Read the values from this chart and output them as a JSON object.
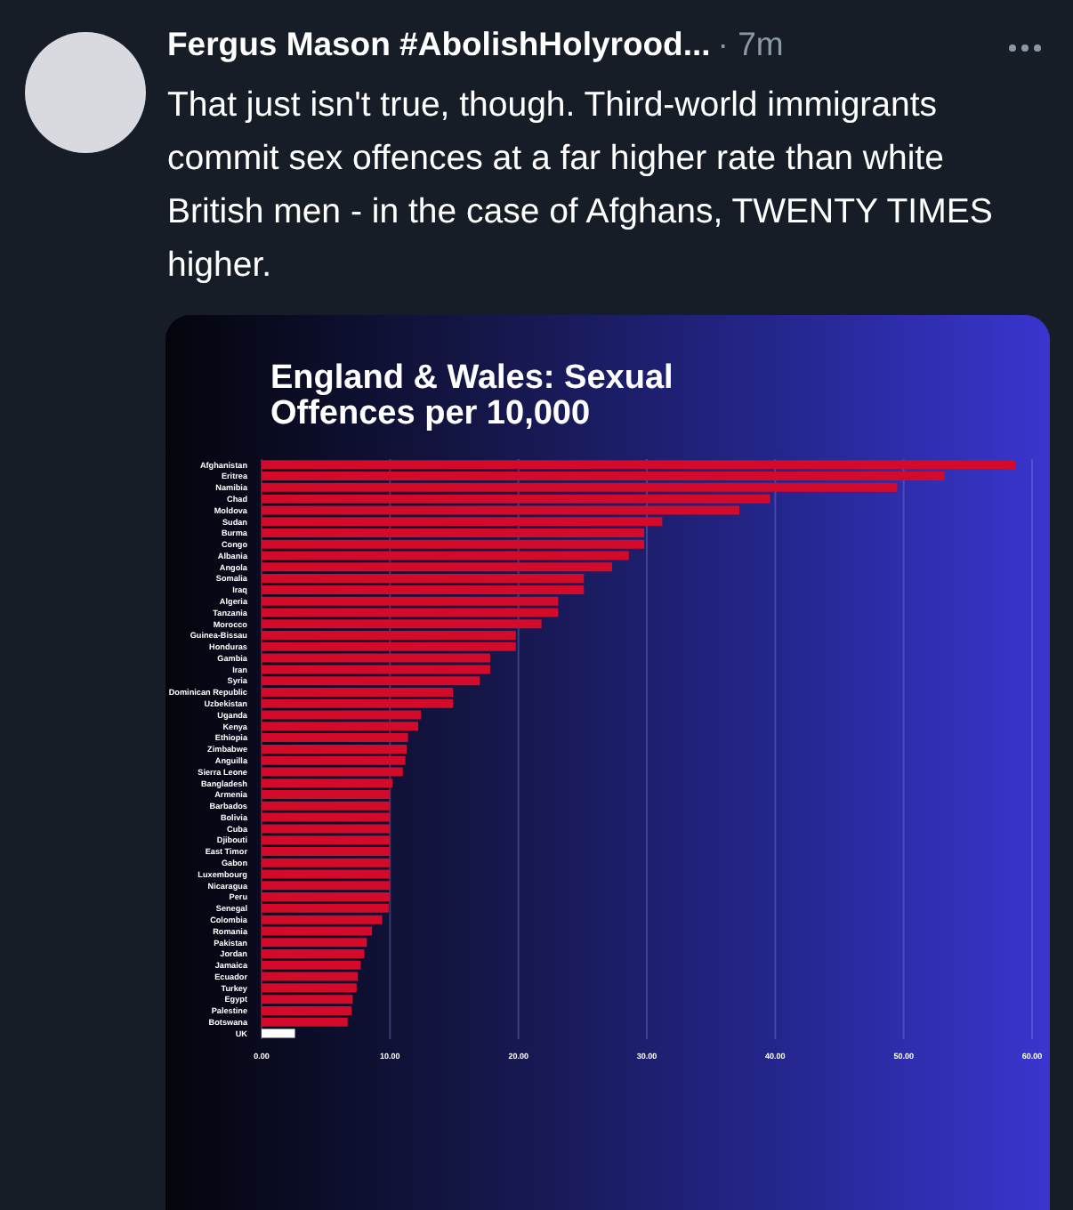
{
  "chart_data": {
    "type": "bar",
    "orientation": "horizontal",
    "title": "England & Wales: Sexual Offences per 10,000",
    "annotations": [
      "Fergus Mason #AbolishHolyrood...",
      "· 7m",
      "That just isn't true, though. Third-world immigrants commit sex offences at a far higher rate than white British men - in the case of Afghans, TWENTY TIMES higher."
    ],
    "categories": [
      "Afghanistan",
      "Eritrea",
      "Namibia",
      "Chad",
      "Moldova",
      "Sudan",
      "Burma",
      "Congo",
      "Albania",
      "Angola",
      "Somalia",
      "Iraq",
      "Algeria",
      "Tanzania",
      "Morocco",
      "Guinea-Bissau",
      "Honduras",
      "Gambia",
      "Iran",
      "Syria",
      "Dominican Republic",
      "Uzbekistan",
      "Uganda",
      "Kenya",
      "Ethiopia",
      "Zimbabwe",
      "Anguilla",
      "Sierra Leone",
      "Bangladesh",
      "Armenia",
      "Barbados",
      "Bolivia",
      "Cuba",
      "Djibouti",
      "East Timor",
      "Gabon",
      "Luxembourg",
      "Nicaragua",
      "Peru",
      "Senegal",
      "Colombia",
      "Romania",
      "Pakistan",
      "Jordan",
      "Jamaica",
      "Ecuador",
      "Turkey",
      "Egypt",
      "Palestine",
      "Botswana",
      "UK"
    ],
    "values": [
      58.7,
      53.2,
      49.5,
      39.6,
      37.2,
      31.2,
      29.8,
      29.8,
      28.6,
      27.3,
      25.1,
      25.1,
      23.1,
      23.1,
      21.8,
      19.8,
      19.8,
      17.8,
      17.8,
      17.0,
      14.9,
      14.9,
      12.4,
      12.2,
      11.4,
      11.3,
      11.2,
      11.0,
      10.2,
      10.0,
      10.0,
      10.0,
      10.0,
      10.0,
      10.0,
      10.0,
      10.0,
      10.0,
      10.0,
      9.9,
      9.4,
      8.6,
      8.2,
      8.0,
      7.7,
      7.5,
      7.4,
      7.1,
      7.0,
      6.7,
      2.6
    ],
    "colors": [
      "#d40a2a",
      "#d40a2a",
      "#d40a2a",
      "#d40a2a",
      "#d40a2a",
      "#d40a2a",
      "#d40a2a",
      "#d40a2a",
      "#d40a2a",
      "#d40a2a",
      "#d40a2a",
      "#d40a2a",
      "#d40a2a",
      "#d40a2a",
      "#d40a2a",
      "#d40a2a",
      "#d40a2a",
      "#d40a2a",
      "#d40a2a",
      "#d40a2a",
      "#d40a2a",
      "#d40a2a",
      "#d40a2a",
      "#d40a2a",
      "#d40a2a",
      "#d40a2a",
      "#d40a2a",
      "#d40a2a",
      "#d40a2a",
      "#d40a2a",
      "#d40a2a",
      "#d40a2a",
      "#d40a2a",
      "#d40a2a",
      "#d40a2a",
      "#d40a2a",
      "#d40a2a",
      "#d40a2a",
      "#d40a2a",
      "#d40a2a",
      "#d40a2a",
      "#d40a2a",
      "#d40a2a",
      "#d40a2a",
      "#d40a2a",
      "#d40a2a",
      "#d40a2a",
      "#d40a2a",
      "#d40a2a",
      "#d40a2a",
      "#ffffff"
    ],
    "xlim": [
      0,
      60
    ],
    "xticks": [
      {
        "value": 0,
        "label": "0.00"
      },
      {
        "value": 10,
        "label": "10.00"
      },
      {
        "value": 20,
        "label": "20.00"
      },
      {
        "value": 30,
        "label": "30.00"
      },
      {
        "value": 40,
        "label": "40.00"
      },
      {
        "value": 50,
        "label": "50.00"
      },
      {
        "value": 60,
        "label": "60.00"
      }
    ],
    "grid": "x"
  }
}
